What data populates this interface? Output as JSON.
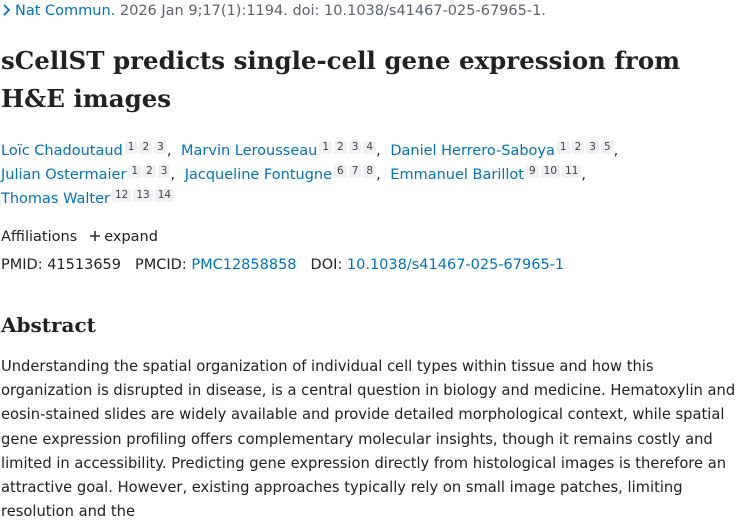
{
  "citation": {
    "journal": "Nat Commun.",
    "details": "2026 Jan 9;17(1):1194. doi: 10.1038/s41467-025-67965-1."
  },
  "title": "sCellST predicts single-cell gene expression from H&E images",
  "authors": [
    {
      "name": "Loïc Chadoutaud",
      "affiliations": [
        1,
        2,
        3
      ]
    },
    {
      "name": "Marvin Lerousseau",
      "affiliations": [
        1,
        2,
        3,
        4
      ]
    },
    {
      "name": "Daniel Herrero-Saboya",
      "affiliations": [
        1,
        2,
        3,
        5
      ]
    },
    {
      "name": "Julian Ostermaier",
      "affiliations": [
        1,
        2,
        3
      ]
    },
    {
      "name": "Jacqueline Fontugne",
      "affiliations": [
        6,
        7,
        8
      ]
    },
    {
      "name": "Emmanuel Barillot",
      "affiliations": [
        9,
        10,
        11
      ]
    },
    {
      "name": "Thomas Walter",
      "affiliations": [
        12,
        13,
        14
      ]
    }
  ],
  "affiliations_toggle": {
    "label": "Affiliations",
    "action": "expand"
  },
  "identifiers": [
    {
      "label": "PMID:",
      "value": "41513659"
    },
    {
      "label": "PMCID:",
      "value": "PMC12858858"
    },
    {
      "label": "DOI:",
      "value": "10.1038/s41467-025-67965-1"
    }
  ],
  "abstract": {
    "heading": "Abstract",
    "text": "Understanding the spatial organization of individual cell types within tissue and how this organization is disrupted in disease, is a central question in biology and medicine. Hematoxylin and eosin-stained slides are widely available and provide detailed morphological context, while spatial gene expression profiling offers complementary molecular insights, though it remains costly and limited in accessibility. Predicting gene expression directly from histological images is therefore an attractive goal. However, existing approaches typically rely on small image patches, limiting resolution and the"
  }
}
